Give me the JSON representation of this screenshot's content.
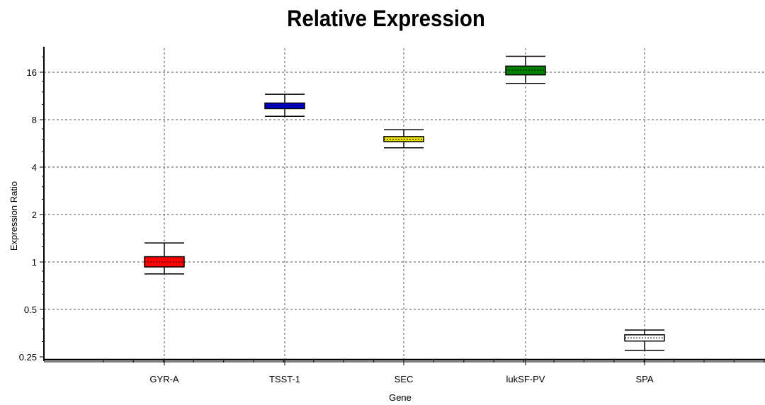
{
  "chart_data": {
    "type": "boxplot",
    "title": "Relative Expression",
    "xlabel": "Gene",
    "ylabel": "Expression Ratio",
    "y_scale": "log2",
    "ylim": [
      0.25,
      24
    ],
    "y_ticks": [
      0.25,
      0.5,
      1,
      2,
      4,
      8,
      16
    ],
    "y_tick_labels": [
      "0.25",
      "0.5",
      "1",
      "2",
      "4",
      "8",
      "16"
    ],
    "grid": true,
    "categories": [
      "GYR-A",
      "TSST-1",
      "SEC",
      "lukSF-PV",
      "SPA"
    ],
    "boxes": [
      {
        "category": "GYR-A",
        "color": "#ff0000",
        "whisker_low": 0.84,
        "q1": 0.93,
        "median": 1.0,
        "q3": 1.08,
        "whisker_high": 1.32
      },
      {
        "category": "TSST-1",
        "color": "#0000cc",
        "whisker_low": 8.4,
        "q1": 9.4,
        "median": 9.8,
        "q3": 10.2,
        "whisker_high": 11.6
      },
      {
        "category": "SEC",
        "color": "#e8e000",
        "whisker_low": 5.3,
        "q1": 5.8,
        "median": 6.0,
        "q3": 6.25,
        "whisker_high": 6.9
      },
      {
        "category": "lukSF-PV",
        "color": "#008000",
        "whisker_low": 13.6,
        "q1": 15.4,
        "median": 16.5,
        "q3": 17.5,
        "whisker_high": 20.2
      },
      {
        "category": "SPA",
        "color": "#ffffff",
        "whisker_low": 0.275,
        "q1": 0.315,
        "median": 0.33,
        "q3": 0.345,
        "whisker_high": 0.37
      }
    ]
  }
}
